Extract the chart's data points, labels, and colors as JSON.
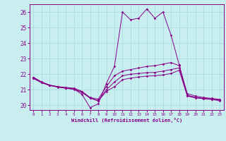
{
  "xlabel": "Windchill (Refroidissement éolien,°C)",
  "background_color": "#c8eef0",
  "grid_color": "#aadde0",
  "line_color": "#880088",
  "xlim": [
    -0.5,
    23.5
  ],
  "ylim": [
    19.7,
    26.5
  ],
  "yticks": [
    20,
    21,
    22,
    23,
    24,
    25,
    26
  ],
  "xticks": [
    0,
    1,
    2,
    3,
    4,
    5,
    6,
    7,
    8,
    9,
    10,
    11,
    12,
    13,
    14,
    15,
    16,
    17,
    18,
    19,
    20,
    21,
    22,
    23
  ],
  "hours": [
    0,
    1,
    2,
    3,
    4,
    5,
    6,
    7,
    8,
    9,
    10,
    11,
    12,
    13,
    14,
    15,
    16,
    17,
    18,
    19,
    20,
    21,
    22,
    23
  ],
  "temp": [
    21.8,
    21.5,
    21.3,
    21.2,
    21.1,
    21.05,
    20.7,
    19.85,
    20.1,
    21.4,
    22.5,
    26.0,
    25.5,
    25.6,
    26.2,
    25.6,
    26.0,
    24.5,
    22.6,
    20.6,
    20.5,
    20.45,
    20.4,
    20.35
  ],
  "line2": [
    21.8,
    21.5,
    21.3,
    21.2,
    21.15,
    21.1,
    20.9,
    20.5,
    20.4,
    21.2,
    21.9,
    22.2,
    22.3,
    22.4,
    22.5,
    22.55,
    22.65,
    22.75,
    22.55,
    20.75,
    20.6,
    20.5,
    20.45,
    20.38
  ],
  "line3": [
    21.75,
    21.48,
    21.28,
    21.18,
    21.12,
    21.05,
    20.85,
    20.48,
    20.3,
    21.0,
    21.5,
    21.9,
    22.0,
    22.05,
    22.1,
    22.12,
    22.2,
    22.3,
    22.4,
    20.65,
    20.52,
    20.44,
    20.4,
    20.32
  ],
  "line4": [
    21.72,
    21.45,
    21.27,
    21.17,
    21.1,
    21.03,
    20.83,
    20.46,
    20.28,
    20.9,
    21.2,
    21.65,
    21.75,
    21.82,
    21.88,
    21.9,
    21.95,
    22.05,
    22.25,
    20.6,
    20.48,
    20.42,
    20.38,
    20.3
  ]
}
